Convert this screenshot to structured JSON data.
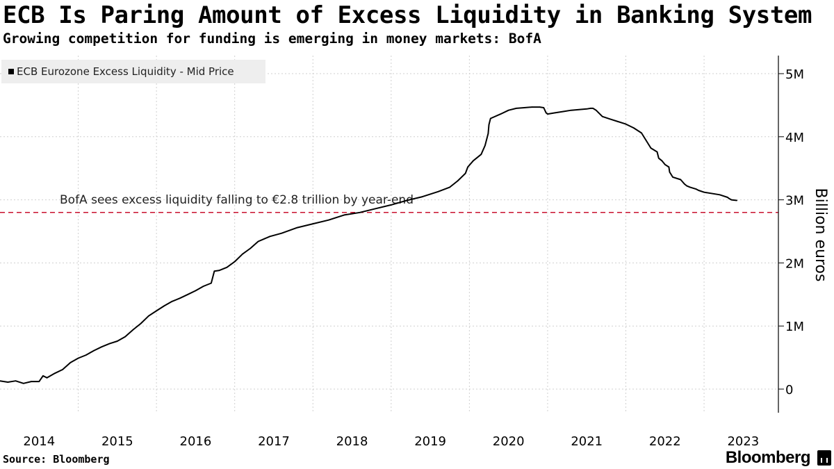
{
  "header": {
    "title": "ECB Is Paring Amount of Excess Liquidity in Banking System",
    "subtitle": "Growing competition for funding is emerging in money markets: BofA"
  },
  "footer": {
    "source": "Source: Bloomberg",
    "brand": "Bloomberg"
  },
  "chart_data": {
    "type": "line",
    "title": "ECB Is Paring Amount of Excess Liquidity in Banking System",
    "subtitle": "Growing competition for funding is emerging in money markets: BofA",
    "ylabel": "Billion euros",
    "xlabel": "",
    "ylim": [
      -250,
      5200
    ],
    "xlim": [
      2014.0,
      2023.95
    ],
    "y_ticks": [
      0,
      1000,
      2000,
      3000,
      4000,
      5000
    ],
    "y_tick_labels": [
      "0",
      "1M",
      "2M",
      "3M",
      "4M",
      "5M"
    ],
    "x_ticks": [
      2014,
      2015,
      2016,
      2017,
      2018,
      2019,
      2020,
      2021,
      2022,
      2023
    ],
    "x_tick_labels": [
      "2014",
      "2015",
      "2016",
      "2017",
      "2018",
      "2019",
      "2020",
      "2021",
      "2022",
      "2023"
    ],
    "grid": true,
    "legend_position": "top-left",
    "legend": [
      "ECB Eurozone Excess Liquidity - Mid Price"
    ],
    "color": "#000000",
    "reference_line": {
      "value": 2800,
      "label": "BofA sees excess liquidity falling to €2.8 trillion by year-end",
      "color": "#c8102e",
      "style": "dashed"
    },
    "series": [
      {
        "name": "ECB Eurozone Excess Liquidity - Mid Price",
        "x": [
          2014.0,
          2014.1,
          2014.2,
          2014.3,
          2014.4,
          2014.5,
          2014.55,
          2014.6,
          2014.7,
          2014.8,
          2014.9,
          2015.0,
          2015.1,
          2015.2,
          2015.3,
          2015.4,
          2015.5,
          2015.6,
          2015.7,
          2015.8,
          2015.9,
          2016.0,
          2016.1,
          2016.2,
          2016.3,
          2016.4,
          2016.5,
          2016.6,
          2016.7,
          2016.74,
          2016.8,
          2016.9,
          2017.0,
          2017.1,
          2017.2,
          2017.3,
          2017.45,
          2017.6,
          2017.8,
          2018.0,
          2018.2,
          2018.4,
          2018.6,
          2018.8,
          2019.0,
          2019.2,
          2019.4,
          2019.6,
          2019.75,
          2019.85,
          2019.95,
          2019.98,
          2020.05,
          2020.15,
          2020.2,
          2020.24,
          2020.25,
          2020.27,
          2020.4,
          2020.5,
          2020.6,
          2020.7,
          2020.8,
          2020.9,
          2020.95,
          2020.98,
          2021.0,
          2021.1,
          2021.2,
          2021.3,
          2021.4,
          2021.5,
          2021.55,
          2021.58,
          2021.62,
          2021.7,
          2021.8,
          2021.9,
          2022.0,
          2022.1,
          2022.2,
          2022.28,
          2022.32,
          2022.4,
          2022.42,
          2022.46,
          2022.5,
          2022.55,
          2022.56,
          2022.6,
          2022.7,
          2022.75,
          2022.78,
          2022.82,
          2022.9,
          2022.93,
          2023.0,
          2023.2,
          2023.3,
          2023.32,
          2023.35,
          2023.42
        ],
        "values": [
          130,
          110,
          130,
          90,
          120,
          120,
          210,
          180,
          250,
          310,
          420,
          490,
          540,
          610,
          670,
          720,
          760,
          830,
          940,
          1040,
          1160,
          1240,
          1320,
          1390,
          1440,
          1500,
          1560,
          1630,
          1680,
          1870,
          1880,
          1930,
          2020,
          2140,
          2230,
          2340,
          2420,
          2470,
          2560,
          2620,
          2680,
          2760,
          2800,
          2860,
          2920,
          2990,
          3050,
          3130,
          3200,
          3300,
          3420,
          3520,
          3620,
          3720,
          3860,
          4050,
          4190,
          4290,
          4360,
          4420,
          4450,
          4460,
          4470,
          4470,
          4460,
          4380,
          4360,
          4380,
          4400,
          4420,
          4430,
          4440,
          4450,
          4450,
          4420,
          4320,
          4280,
          4240,
          4200,
          4140,
          4060,
          3900,
          3820,
          3760,
          3660,
          3620,
          3560,
          3520,
          3440,
          3360,
          3320,
          3250,
          3220,
          3200,
          3170,
          3150,
          3120,
          3080,
          3040,
          3020,
          3000,
          2990
        ]
      }
    ]
  }
}
